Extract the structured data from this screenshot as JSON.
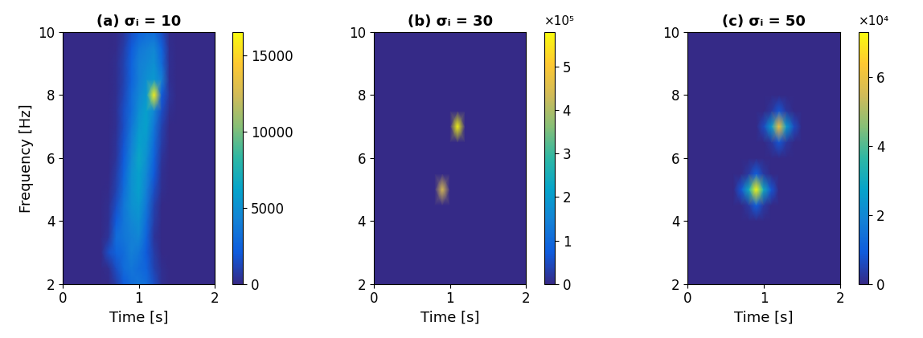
{
  "chart_data": [
    {
      "type": "heatmap",
      "title": "(a) σᵢ = 10",
      "x_label": "Time [s]",
      "y_label": "Frequency [Hz]",
      "x": [
        0,
        0.1,
        0.2,
        0.3,
        0.4,
        0.5,
        0.6,
        0.7,
        0.8,
        0.9,
        1.0,
        1.1,
        1.2,
        1.3,
        1.4,
        1.5,
        1.6,
        1.7,
        1.8,
        1.9,
        2.0
      ],
      "y": [
        2,
        2.5,
        3,
        3.5,
        4,
        4.5,
        5,
        5.5,
        6,
        6.5,
        7,
        7.5,
        8,
        8.5,
        9,
        9.5,
        10
      ],
      "cells": [
        [
          0,
          0,
          0,
          0,
          0,
          0,
          0,
          800,
          2000,
          3000,
          3500,
          3000,
          1500,
          300,
          0,
          0,
          0,
          0,
          0,
          0,
          0
        ],
        [
          0,
          0,
          0,
          0,
          0,
          0,
          200,
          1500,
          3000,
          3500,
          3000,
          2500,
          1000,
          200,
          0,
          0,
          0,
          0,
          0,
          0,
          0
        ],
        [
          0,
          0,
          0,
          0,
          0,
          0,
          1500,
          2500,
          3000,
          4000,
          3500,
          2000,
          800,
          0,
          0,
          0,
          0,
          0,
          0,
          0,
          0
        ],
        [
          0,
          0,
          0,
          0,
          0,
          0,
          500,
          3000,
          3500,
          4000,
          4500,
          2500,
          500,
          0,
          0,
          0,
          0,
          0,
          0,
          0,
          0
        ],
        [
          0,
          0,
          0,
          0,
          0,
          0,
          300,
          2000,
          3500,
          4500,
          5000,
          3000,
          800,
          0,
          0,
          0,
          0,
          0,
          0,
          0,
          0
        ],
        [
          0,
          0,
          0,
          0,
          0,
          0,
          200,
          1500,
          3500,
          5000,
          5500,
          3500,
          1000,
          0,
          0,
          0,
          0,
          0,
          0,
          0,
          0
        ],
        [
          0,
          0,
          0,
          0,
          0,
          0,
          100,
          1000,
          3000,
          5000,
          6000,
          4000,
          1500,
          200,
          0,
          0,
          0,
          0,
          0,
          0,
          0
        ],
        [
          0,
          0,
          0,
          0,
          0,
          0,
          0,
          800,
          2500,
          5000,
          6000,
          4500,
          2000,
          300,
          0,
          0,
          0,
          0,
          0,
          0,
          0
        ],
        [
          0,
          0,
          0,
          0,
          0,
          0,
          0,
          500,
          2000,
          4500,
          6500,
          5000,
          2500,
          500,
          0,
          0,
          0,
          0,
          0,
          0,
          0
        ],
        [
          0,
          0,
          0,
          0,
          0,
          0,
          0,
          400,
          1800,
          4000,
          6000,
          5500,
          3000,
          800,
          0,
          0,
          0,
          0,
          0,
          0,
          0
        ],
        [
          0,
          0,
          0,
          0,
          0,
          0,
          0,
          300,
          1500,
          3500,
          5500,
          6000,
          3500,
          1000,
          0,
          0,
          0,
          0,
          0,
          0,
          0
        ],
        [
          0,
          0,
          0,
          0,
          0,
          0,
          0,
          300,
          1500,
          3000,
          5000,
          6000,
          4500,
          1500,
          200,
          0,
          0,
          0,
          0,
          0,
          0
        ],
        [
          0,
          0,
          0,
          0,
          0,
          0,
          0,
          200,
          1200,
          3000,
          4500,
          5500,
          16000,
          2000,
          500,
          0,
          0,
          0,
          0,
          0,
          0
        ],
        [
          0,
          0,
          0,
          0,
          0,
          0,
          0,
          200,
          1000,
          2500,
          4000,
          5000,
          5500,
          4000,
          300,
          0,
          0,
          0,
          0,
          0,
          0
        ],
        [
          0,
          0,
          0,
          0,
          0,
          0,
          0,
          200,
          1000,
          2500,
          4000,
          4500,
          5000,
          3000,
          300,
          0,
          0,
          0,
          0,
          0,
          0
        ],
        [
          0,
          0,
          0,
          0,
          0,
          0,
          0,
          100,
          800,
          2000,
          3500,
          4000,
          4500,
          2500,
          200,
          0,
          0,
          0,
          0,
          0,
          0
        ],
        [
          0,
          0,
          0,
          0,
          0,
          0,
          0,
          100,
          500,
          1500,
          2500,
          3000,
          3000,
          1500,
          100,
          0,
          0,
          0,
          0,
          0,
          0
        ]
      ],
      "xlim": [
        0,
        2
      ],
      "ylim": [
        2,
        10
      ],
      "xticks": [
        0,
        1,
        2
      ],
      "yticks": [
        2,
        4,
        6,
        8,
        10
      ],
      "colorbar_range": [
        0,
        16500
      ],
      "colorbar_ticks": [
        0,
        5000,
        10000,
        15000
      ]
    },
    {
      "type": "heatmap",
      "title": "(b) σᵢ = 30",
      "x_label": "Time [s]",
      "x": [
        0,
        0.1,
        0.2,
        0.3,
        0.4,
        0.5,
        0.6,
        0.7,
        0.8,
        0.9,
        1.0,
        1.1,
        1.2,
        1.3,
        1.4,
        1.5,
        1.6,
        1.7,
        1.8,
        1.9,
        2.0
      ],
      "y": [
        2,
        2.5,
        3,
        3.5,
        4,
        4.5,
        5,
        5.5,
        6,
        6.5,
        7,
        7.5,
        8,
        8.5,
        9,
        9.5,
        10
      ],
      "cells": [
        [
          0,
          0,
          0,
          0,
          0,
          0,
          0,
          0,
          0,
          0,
          0,
          0,
          0,
          0,
          0,
          0,
          0,
          0,
          0,
          0,
          0
        ],
        [
          0,
          0,
          0,
          0,
          0,
          0,
          0,
          0,
          0,
          0,
          0,
          0,
          0,
          0,
          0,
          0,
          0,
          0,
          0,
          0,
          0
        ],
        [
          0,
          0,
          0,
          0,
          0,
          0,
          0,
          0,
          0,
          0,
          0,
          0,
          0,
          0,
          0,
          0,
          0,
          0,
          0,
          0,
          0
        ],
        [
          0,
          0,
          0,
          0,
          0,
          0,
          0,
          0,
          0,
          0,
          0,
          0,
          0,
          0,
          0,
          0,
          0,
          0,
          0,
          0,
          0
        ],
        [
          0,
          0,
          0,
          0,
          0,
          0,
          0,
          0,
          0,
          0,
          0,
          0,
          0,
          0,
          0,
          0,
          0,
          0,
          0,
          0,
          0
        ],
        [
          0,
          0,
          0,
          0,
          0,
          0,
          0,
          0,
          0,
          0,
          0,
          0,
          0,
          0,
          0,
          0,
          0,
          0,
          0,
          0,
          0
        ],
        [
          0,
          0,
          0,
          0,
          0,
          0,
          0,
          0,
          0,
          450000,
          0,
          0,
          0,
          0,
          0,
          0,
          0,
          0,
          0,
          0,
          0
        ],
        [
          0,
          0,
          0,
          0,
          0,
          0,
          0,
          0,
          0,
          0,
          0,
          0,
          0,
          0,
          0,
          0,
          0,
          0,
          0,
          0,
          0
        ],
        [
          0,
          0,
          0,
          0,
          0,
          0,
          0,
          0,
          0,
          0,
          0,
          0,
          0,
          0,
          0,
          0,
          0,
          0,
          0,
          0,
          0
        ],
        [
          0,
          0,
          0,
          0,
          0,
          0,
          0,
          0,
          0,
          0,
          0,
          0,
          0,
          0,
          0,
          0,
          0,
          0,
          0,
          0,
          0
        ],
        [
          0,
          0,
          0,
          0,
          0,
          0,
          0,
          0,
          0,
          0,
          0,
          580000,
          0,
          0,
          0,
          0,
          0,
          0,
          0,
          0,
          0
        ],
        [
          0,
          0,
          0,
          0,
          0,
          0,
          0,
          0,
          0,
          0,
          0,
          0,
          0,
          0,
          0,
          0,
          0,
          0,
          0,
          0,
          0
        ],
        [
          0,
          0,
          0,
          0,
          0,
          0,
          0,
          0,
          0,
          0,
          0,
          0,
          0,
          0,
          0,
          0,
          0,
          0,
          0,
          0,
          0
        ],
        [
          0,
          0,
          0,
          0,
          0,
          0,
          0,
          0,
          0,
          0,
          0,
          0,
          0,
          0,
          0,
          0,
          0,
          0,
          0,
          0,
          0
        ],
        [
          0,
          0,
          0,
          0,
          0,
          0,
          0,
          0,
          0,
          0,
          0,
          0,
          0,
          0,
          0,
          0,
          0,
          0,
          0,
          0,
          0
        ],
        [
          0,
          0,
          0,
          0,
          0,
          0,
          0,
          0,
          0,
          0,
          0,
          0,
          0,
          0,
          0,
          0,
          0,
          0,
          0,
          0,
          0
        ],
        [
          0,
          0,
          0,
          0,
          0,
          0,
          0,
          0,
          0,
          0,
          0,
          0,
          0,
          0,
          0,
          0,
          0,
          0,
          0,
          0,
          0
        ]
      ],
      "xlim": [
        0,
        2
      ],
      "ylim": [
        2,
        10
      ],
      "xticks": [
        0,
        1,
        2
      ],
      "yticks": [
        2,
        4,
        6,
        8,
        10
      ],
      "colorbar_range": [
        0,
        580000
      ],
      "colorbar_ticks": [
        {
          "value": 0,
          "label": "0"
        },
        {
          "value": 100000,
          "label": "1"
        },
        {
          "value": 200000,
          "label": "2"
        },
        {
          "value": 300000,
          "label": "3"
        },
        {
          "value": 400000,
          "label": "4"
        },
        {
          "value": 500000,
          "label": "5"
        }
      ],
      "colorbar_multiplier": "×10⁵"
    },
    {
      "type": "heatmap",
      "title": "(c) σᵢ = 50",
      "x_label": "Time [s]",
      "x": [
        0,
        0.1,
        0.2,
        0.3,
        0.4,
        0.5,
        0.6,
        0.7,
        0.8,
        0.9,
        1.0,
        1.1,
        1.2,
        1.3,
        1.4,
        1.5,
        1.6,
        1.7,
        1.8,
        1.9,
        2.0
      ],
      "y": [
        2,
        2.5,
        3,
        3.5,
        4,
        4.5,
        5,
        5.5,
        6,
        6.5,
        7,
        7.5,
        8,
        8.5,
        9,
        9.5,
        10
      ],
      "cells": [
        [
          0,
          0,
          0,
          0,
          0,
          0,
          0,
          0,
          0,
          0,
          0,
          0,
          0,
          0,
          0,
          0,
          0,
          0,
          0,
          0,
          0
        ],
        [
          0,
          0,
          0,
          0,
          0,
          0,
          0,
          0,
          0,
          0,
          0,
          0,
          0,
          0,
          0,
          0,
          0,
          0,
          0,
          0,
          0
        ],
        [
          0,
          0,
          0,
          0,
          0,
          0,
          0,
          0,
          0,
          0,
          0,
          0,
          0,
          0,
          0,
          0,
          0,
          0,
          0,
          0,
          0
        ],
        [
          0,
          0,
          0,
          0,
          0,
          0,
          0,
          0,
          0,
          0,
          0,
          0,
          0,
          0,
          0,
          0,
          0,
          0,
          0,
          0,
          0
        ],
        [
          0,
          0,
          0,
          0,
          0,
          0,
          0,
          0,
          0,
          0,
          0,
          0,
          0,
          0,
          0,
          0,
          0,
          0,
          0,
          0,
          0
        ],
        [
          0,
          0,
          0,
          0,
          0,
          0,
          0,
          0,
          3000,
          10000,
          3000,
          0,
          0,
          0,
          0,
          0,
          0,
          0,
          0,
          0,
          0
        ],
        [
          0,
          0,
          0,
          0,
          0,
          0,
          0,
          8000,
          30000,
          73000,
          30000,
          8000,
          0,
          0,
          0,
          0,
          0,
          0,
          0,
          0,
          0
        ],
        [
          0,
          0,
          0,
          0,
          0,
          0,
          0,
          0,
          3000,
          10000,
          3000,
          0,
          0,
          0,
          0,
          0,
          0,
          0,
          0,
          0,
          0
        ],
        [
          0,
          0,
          0,
          0,
          0,
          0,
          0,
          0,
          0,
          0,
          0,
          0,
          0,
          0,
          0,
          0,
          0,
          0,
          0,
          0,
          0
        ],
        [
          0,
          0,
          0,
          0,
          0,
          0,
          0,
          0,
          0,
          0,
          0,
          2500,
          8000,
          2500,
          0,
          0,
          0,
          0,
          0,
          0,
          0
        ],
        [
          0,
          0,
          0,
          0,
          0,
          0,
          0,
          0,
          0,
          0,
          6000,
          25000,
          62000,
          25000,
          6000,
          0,
          0,
          0,
          0,
          0,
          0
        ],
        [
          0,
          0,
          0,
          0,
          0,
          0,
          0,
          0,
          0,
          0,
          0,
          2500,
          8000,
          2500,
          0,
          0,
          0,
          0,
          0,
          0,
          0
        ],
        [
          0,
          0,
          0,
          0,
          0,
          0,
          0,
          0,
          0,
          0,
          0,
          0,
          0,
          0,
          0,
          0,
          0,
          0,
          0,
          0,
          0
        ],
        [
          0,
          0,
          0,
          0,
          0,
          0,
          0,
          0,
          0,
          0,
          0,
          0,
          0,
          0,
          0,
          0,
          0,
          0,
          0,
          0,
          0
        ],
        [
          0,
          0,
          0,
          0,
          0,
          0,
          0,
          0,
          0,
          0,
          0,
          0,
          0,
          0,
          0,
          0,
          0,
          0,
          0,
          0,
          0
        ],
        [
          0,
          0,
          0,
          0,
          0,
          0,
          0,
          0,
          0,
          0,
          0,
          0,
          0,
          0,
          0,
          0,
          0,
          0,
          0,
          0,
          0
        ],
        [
          0,
          0,
          0,
          0,
          0,
          0,
          0,
          0,
          0,
          0,
          0,
          0,
          0,
          0,
          0,
          0,
          0,
          0,
          0,
          0,
          0
        ]
      ],
      "xlim": [
        0,
        2
      ],
      "ylim": [
        2,
        10
      ],
      "xticks": [
        0,
        1,
        2
      ],
      "yticks": [
        2,
        4,
        6,
        8,
        10
      ],
      "colorbar_range": [
        0,
        73000
      ],
      "colorbar_ticks": [
        {
          "value": 0,
          "label": "0"
        },
        {
          "value": 20000,
          "label": "2"
        },
        {
          "value": 40000,
          "label": "4"
        },
        {
          "value": 60000,
          "label": "6"
        }
      ],
      "colorbar_multiplier": "×10⁴"
    }
  ]
}
